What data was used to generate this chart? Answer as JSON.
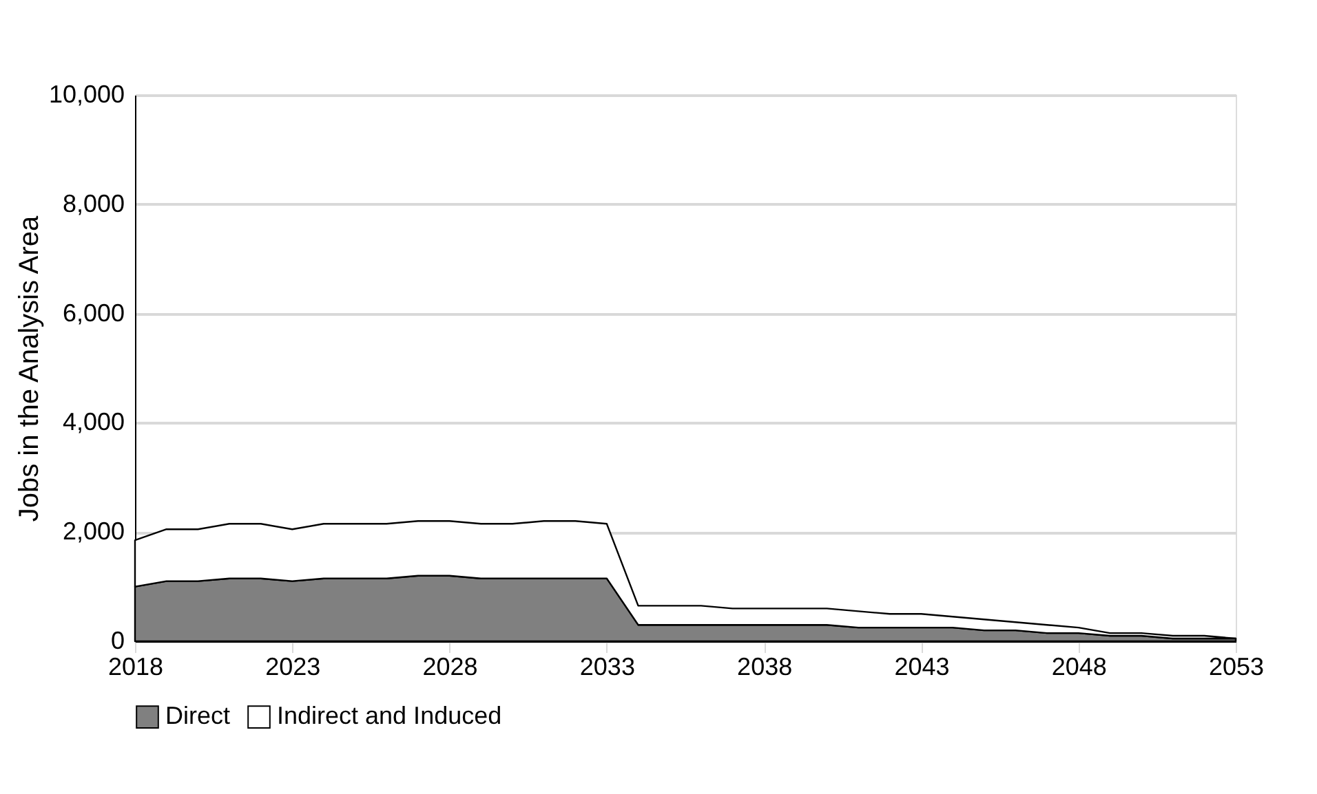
{
  "chart_data": {
    "type": "area",
    "stacked": true,
    "ylabel": "Jobs in the Analysis Area",
    "x": [
      2018,
      2019,
      2020,
      2021,
      2022,
      2023,
      2024,
      2025,
      2026,
      2027,
      2028,
      2029,
      2030,
      2031,
      2032,
      2033,
      2034,
      2035,
      2036,
      2037,
      2038,
      2039,
      2040,
      2041,
      2042,
      2043,
      2044,
      2045,
      2046,
      2047,
      2048,
      2049,
      2050,
      2051,
      2052,
      2053
    ],
    "series": [
      {
        "name": "Direct",
        "color": "#808080",
        "values": [
          1000,
          1100,
          1100,
          1150,
          1150,
          1100,
          1150,
          1150,
          1150,
          1200,
          1200,
          1150,
          1150,
          1150,
          1150,
          1150,
          300,
          300,
          300,
          300,
          300,
          300,
          300,
          250,
          250,
          250,
          250,
          200,
          200,
          150,
          150,
          100,
          100,
          50,
          50,
          50
        ]
      },
      {
        "name": "Indirect and Induced",
        "color": "#ffffff",
        "values": [
          850,
          950,
          950,
          1000,
          1000,
          950,
          1000,
          1000,
          1000,
          1000,
          1000,
          1000,
          1000,
          1050,
          1050,
          1000,
          350,
          350,
          350,
          300,
          300,
          300,
          300,
          300,
          250,
          250,
          200,
          200,
          150,
          150,
          100,
          50,
          50,
          50,
          50,
          0
        ]
      }
    ],
    "xlim": [
      2018,
      2053
    ],
    "xticks": [
      2018,
      2023,
      2028,
      2033,
      2038,
      2043,
      2048,
      2053
    ],
    "ylim": [
      0,
      10000
    ],
    "yticks": [
      0,
      {
        "value": 2000,
        "label": "2,000"
      },
      {
        "value": 4000,
        "label": "4,000"
      },
      {
        "value": 6000,
        "label": "6,000"
      },
      {
        "value": 8000,
        "label": "8,000"
      },
      {
        "value": 10000,
        "label": "10,000"
      }
    ],
    "grid": "y",
    "legend": "bottom"
  }
}
